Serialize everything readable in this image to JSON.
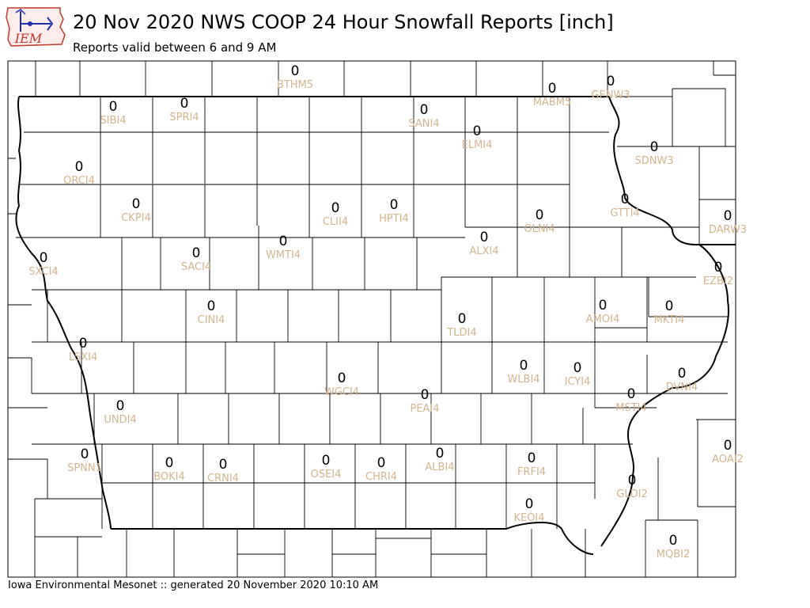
{
  "header": {
    "title": "20 Nov 2020 NWS COOP 24 Hour Snowfall Reports [inch]",
    "subtitle": "Reports valid between 6 and 9 AM"
  },
  "footer": {
    "text": "Iowa Environmental Mesonet :: generated 20 November 2020 10:10 AM"
  },
  "logo": {
    "text": "IEM"
  },
  "colors": {
    "value_text": "#000000",
    "station_text": "#d2b48c",
    "county_border": "#000000",
    "logo_blue": "#1f2fb0",
    "logo_red": "#c0392b"
  },
  "stations": [
    {
      "id": "BTHM5",
      "value": "0"
    },
    {
      "id": "MABM5",
      "value": "0"
    },
    {
      "id": "GENW3",
      "value": "0"
    },
    {
      "id": "SIBI4",
      "value": "0"
    },
    {
      "id": "SPRI4",
      "value": "0"
    },
    {
      "id": "SANI4",
      "value": "0"
    },
    {
      "id": "ELMI4",
      "value": "0"
    },
    {
      "id": "SDNW3",
      "value": "0"
    },
    {
      "id": "ORCI4",
      "value": "0"
    },
    {
      "id": "CKPI4",
      "value": "0"
    },
    {
      "id": "CLII4",
      "value": "0"
    },
    {
      "id": "HPTI4",
      "value": "0"
    },
    {
      "id": "OLNI4",
      "value": "0"
    },
    {
      "id": "GTTI4",
      "value": "0"
    },
    {
      "id": "DARW3",
      "value": "0"
    },
    {
      "id": "SXCI4",
      "value": "0"
    },
    {
      "id": "SACI4",
      "value": "0"
    },
    {
      "id": "WMTI4",
      "value": "0"
    },
    {
      "id": "ALXI4",
      "value": "0"
    },
    {
      "id": "EZBI2",
      "value": "0"
    },
    {
      "id": "CINI4",
      "value": "0"
    },
    {
      "id": "TLDI4",
      "value": "0"
    },
    {
      "id": "AMOI4",
      "value": "0"
    },
    {
      "id": "MKTI4",
      "value": "0"
    },
    {
      "id": "LSXI4",
      "value": "0"
    },
    {
      "id": "WGCI4",
      "value": "0"
    },
    {
      "id": "WLBI4",
      "value": "0"
    },
    {
      "id": "ICYI4",
      "value": "0"
    },
    {
      "id": "DVNI4",
      "value": "0"
    },
    {
      "id": "UNDI4",
      "value": "0"
    },
    {
      "id": "PEAI4",
      "value": "0"
    },
    {
      "id": "MSTI4",
      "value": "0"
    },
    {
      "id": "SPNN1",
      "value": "0"
    },
    {
      "id": "BOKI4",
      "value": "0"
    },
    {
      "id": "CRNI4",
      "value": "0"
    },
    {
      "id": "OSEI4",
      "value": "0"
    },
    {
      "id": "CHRI4",
      "value": "0"
    },
    {
      "id": "ALBI4",
      "value": "0"
    },
    {
      "id": "FRFI4",
      "value": "0"
    },
    {
      "id": "AOAI2",
      "value": "0"
    },
    {
      "id": "GLDI2",
      "value": "0"
    },
    {
      "id": "KEOI4",
      "value": "0"
    },
    {
      "id": "MQBI2",
      "value": "0"
    }
  ]
}
